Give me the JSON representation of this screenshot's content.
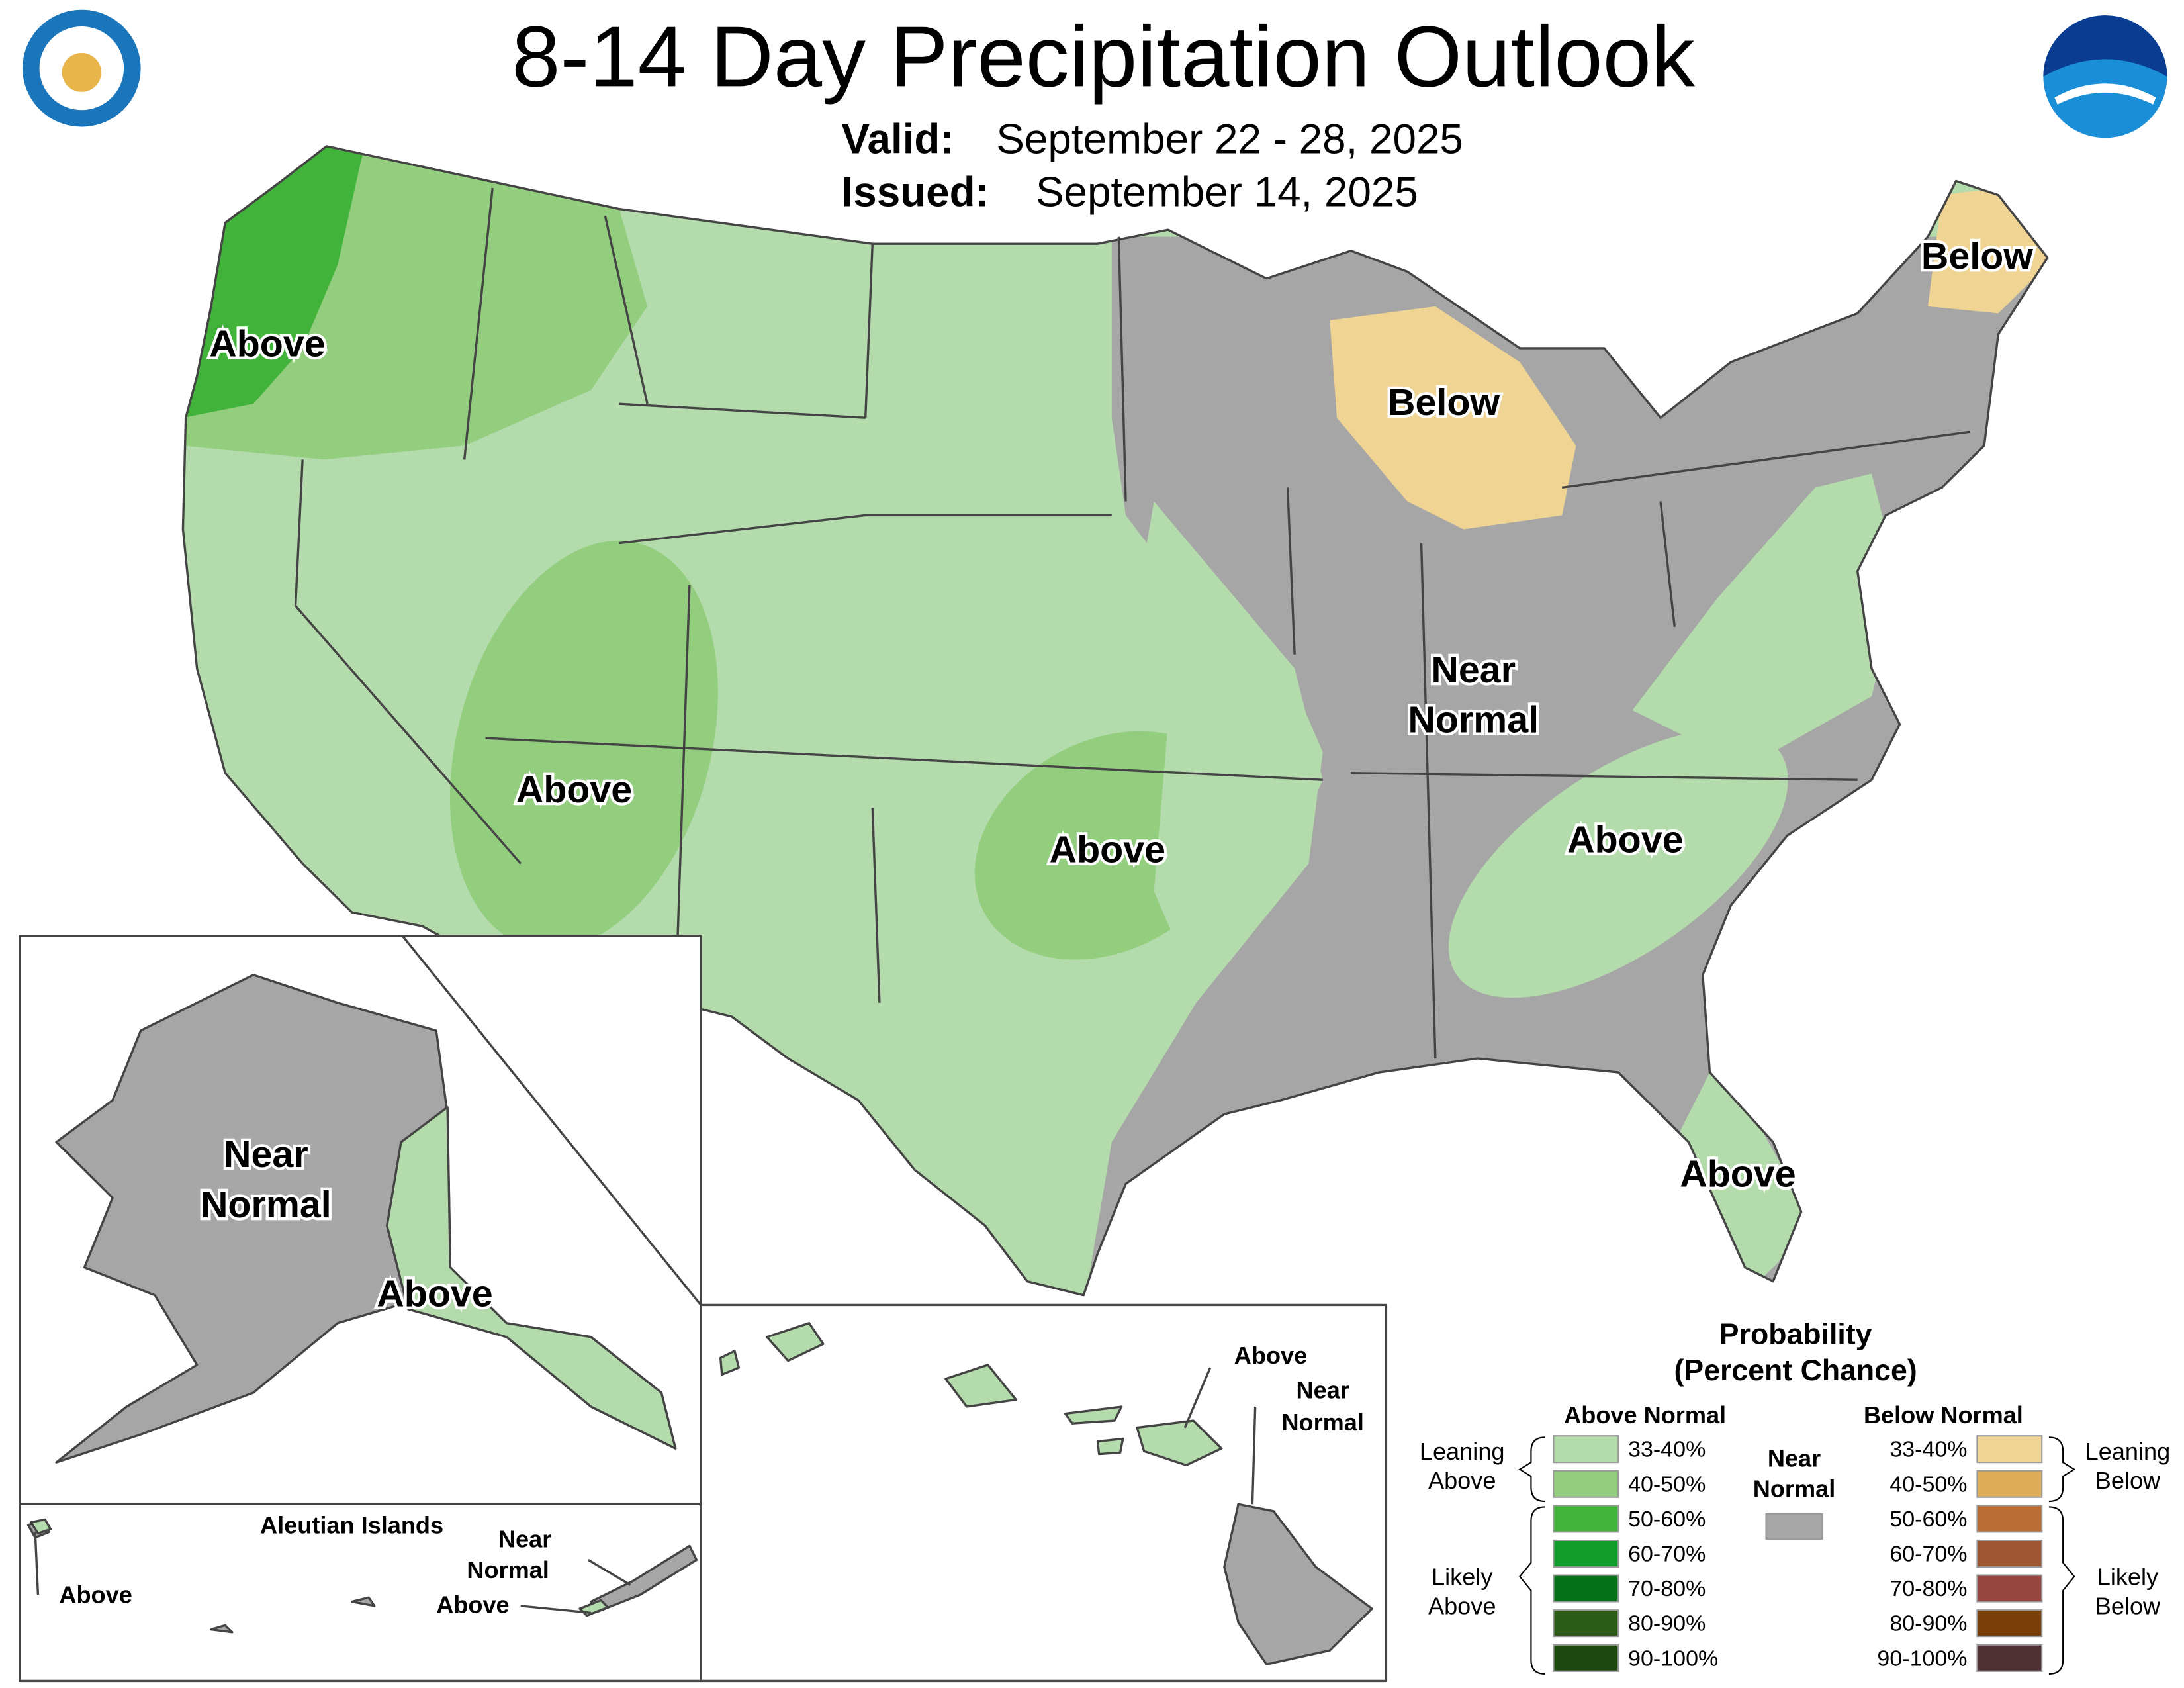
{
  "header": {
    "title": "8-14 Day Precipitation Outlook",
    "valid_label": "Valid:",
    "valid_dates": "September 22 - 28, 2025",
    "issued_label": "Issued:",
    "issued_date": "September 14, 2025"
  },
  "map_labels": {
    "nw_above": "Above",
    "southwest_above": "Above",
    "oklahoma_above": "Above",
    "southeast_above": "Above",
    "florida_above": "Above",
    "michigan_below": "Below",
    "maine_below": "Below",
    "central_near_normal": [
      "Near",
      "Normal"
    ]
  },
  "alaska": {
    "near_normal": [
      "Near",
      "Normal"
    ],
    "above": "Above"
  },
  "aleutians": {
    "title": "Aleutian Islands",
    "west_above": "Above",
    "east_near_normal": [
      "Near",
      "Normal"
    ],
    "east_above": "Above"
  },
  "hawaii": {
    "above": "Above",
    "near_normal": [
      "Near",
      "Normal"
    ]
  },
  "legend": {
    "title": "Probability",
    "subtitle": "(Percent Chance)",
    "above_heading": "Above Normal",
    "below_heading": "Below Normal",
    "near_normal": [
      "Near",
      "Normal"
    ],
    "near_normal_color": "#a6a6a6",
    "leaning_above": [
      "Leaning",
      "Above"
    ],
    "likely_above": [
      "Likely",
      "Above"
    ],
    "leaning_below": [
      "Leaning",
      "Below"
    ],
    "likely_below": [
      "Likely",
      "Below"
    ],
    "above": [
      {
        "label": "33-40%",
        "color": "#b3dbab"
      },
      {
        "label": "40-50%",
        "color": "#93cd7e"
      },
      {
        "label": "50-60%",
        "color": "#42b33a"
      },
      {
        "label": "60-70%",
        "color": "#119b2a"
      },
      {
        "label": "70-80%",
        "color": "#067119"
      },
      {
        "label": "80-90%",
        "color": "#2c5b18"
      },
      {
        "label": "90-100%",
        "color": "#1d4810"
      }
    ],
    "below": [
      {
        "label": "33-40%",
        "color": "#f0d493"
      },
      {
        "label": "40-50%",
        "color": "#dcad56"
      },
      {
        "label": "50-60%",
        "color": "#bc6d33"
      },
      {
        "label": "60-70%",
        "color": "#9e5531"
      },
      {
        "label": "70-80%",
        "color": "#964540"
      },
      {
        "label": "80-90%",
        "color": "#7a3f09"
      },
      {
        "label": "90-100%",
        "color": "#4f3034"
      }
    ]
  }
}
